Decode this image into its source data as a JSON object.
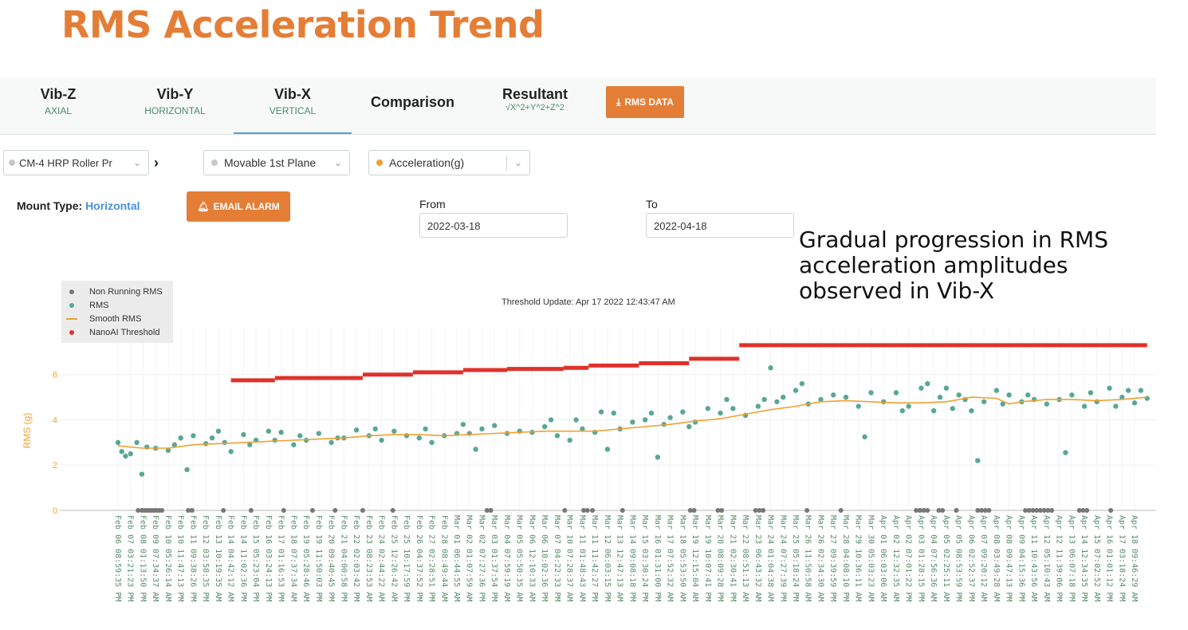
{
  "page_title": "RMS Acceleration Trend",
  "tabs": [
    {
      "label": "Vib-Z",
      "sub": "AXIAL"
    },
    {
      "label": "Vib-Y",
      "sub": "HORIZONTAL"
    },
    {
      "label": "Vib-X",
      "sub": "VERTICAL",
      "active": true
    },
    {
      "label": "Comparison",
      "sub": ""
    },
    {
      "label": "Resultant",
      "sub": "√X^2+Y^2+Z^2"
    }
  ],
  "rms_data_button": "RMS DATA",
  "filters": {
    "machine": "CM-4 HRP Roller Pr",
    "plane": "Movable 1st Plane",
    "measure": "Acceleration(g)"
  },
  "mount": {
    "label": "Mount Type:",
    "value": "Horizontal"
  },
  "email_alarm_button": "EMAIL ALARM",
  "date_range": {
    "from_label": "From",
    "from_value": "2022-03-18",
    "to_label": "To",
    "to_value": "2022-04-18"
  },
  "annotation": "Gradual progression in RMS acceleration amplitudes observed in Vib-X",
  "colors": {
    "accent": "#e47e36",
    "rms": "#5aa696",
    "non_running": "#777777",
    "smooth": "#f0a030",
    "threshold": "#e0312c",
    "link": "#4a90d9"
  },
  "chart_data": {
    "type": "scatter",
    "threshold_note": "Threshold Update: Apr 17 2022 12:43:47 AM",
    "ylabel": "RMS (g)",
    "ylim": [
      0,
      7.4
    ],
    "yticks": [
      0,
      2,
      4,
      6
    ],
    "legend": [
      "Non Running RMS",
      "RMS",
      "Smooth RMS",
      "NanoAI Threshold"
    ],
    "legend_position": "top-left",
    "x_tick_labels": [
      "Feb 06 08:59:35 PM",
      "Feb 07 03:21:23 PM",
      "Feb 08 01:13:50 PM",
      "Feb 09 07:34:37 AM",
      "Feb 10 05:26:14 AM",
      "Feb 10 11:47:13 PM",
      "Feb 11 09:38:26 PM",
      "Feb 12 03:58:35 PM",
      "Feb 13 10:19:35 AM",
      "Feb 14 04:42:12 AM",
      "Feb 14 11:02:36 PM",
      "Feb 15 05:23:04 PM",
      "Feb 16 03:24:13 PM",
      "Feb 17 01:16:53 PM",
      "Feb 18 07:37:34 AM",
      "Feb 19 05:28:46 AM",
      "Feb 19 11:50:03 PM",
      "Feb 20 09:40:45 PM",
      "Feb 21 04:00:58 PM",
      "Feb 22 02:03:42 PM",
      "Feb 23 08:23:53 AM",
      "Feb 24 02:44:22 AM",
      "Feb 25 12:26:42 AM",
      "Feb 25 10:17:59 PM",
      "Feb 26 04:37:52 PM",
      "Feb 27 02:28:51 PM",
      "Feb 28 08:49:44 AM",
      "Mar 01 06:44:55 AM",
      "Mar 02 01:07:59 AM",
      "Mar 02 07:27:36 PM",
      "Mar 03 01:37:54 PM",
      "Mar 04 07:59:19 AM",
      "Mar 05 05:50:35 AM",
      "Mar 06 12:10:33 AM",
      "Mar 06 10:02:36 PM",
      "Mar 07 04:22:33 PM",
      "Mar 10 07:28:37 AM",
      "Mar 11 01:48:43 AM",
      "Mar 11 11:42:27 PM",
      "Mar 12 06:03:15 PM",
      "Mar 13 12:47:13 AM",
      "Mar 14 09:08:18 PM",
      "Mar 15 03:30:24 PM",
      "Mar 16 01:31:00 PM",
      "Mar 17 07:52:32 AM",
      "Mar 18 05:53:50 AM",
      "Mar 19 12:15:04 AM",
      "Mar 19 10:07:41 PM",
      "Mar 20 08:09:28 PM",
      "Mar 21 02:30:41 PM",
      "Mar 22 08:51:13 AM",
      "Mar 23 06:43:32 AM",
      "Mar 24 01:04:38 AM",
      "Mar 24 07:27:39 PM",
      "Mar 25 05:18:24 PM",
      "Mar 26 11:50:58 AM",
      "Mar 26 02:34:30 AM",
      "Mar 27 09:39:59 PM",
      "Mar 28 04:08:10 PM",
      "Mar 29 10:36:11 AM",
      "Mar 30 05:03:23 AM",
      "Apr 01 06:03:06 AM",
      "Apr 02 12:32:35 AM",
      "Apr 02 07:01:22 PM",
      "Apr 03 01:28:15 PM",
      "Apr 04 07:56:36 AM",
      "Apr 05 02:25:11 AM",
      "Apr 05 08:53:59 PM",
      "Apr 06 02:52:37 PM",
      "Apr 07 09:20:12 AM",
      "Apr 08 03:49:28 AM",
      "Apr 08 09:47:13 PM",
      "Apr 09 04:15:36 PM",
      "Apr 11 10:43:56 AM",
      "Apr 12 05:10:43 AM",
      "Apr 12 11:39:06 PM",
      "Apr 13 06:07:18 PM",
      "Apr 14 12:34:35 PM",
      "Apr 15 07:02:52 AM",
      "Apr 16 01:01:12 PM",
      "Apr 17 03:18:24 PM",
      "Apr 18 09:46:29 AM"
    ],
    "threshold_steps": [
      {
        "from": 9,
        "to": 12.5,
        "value": 5.75
      },
      {
        "from": 12.5,
        "to": 19.5,
        "value": 5.85
      },
      {
        "from": 19.5,
        "to": 23.5,
        "value": 6.0
      },
      {
        "from": 23.5,
        "to": 27.5,
        "value": 6.1
      },
      {
        "from": 27.5,
        "to": 31,
        "value": 6.2
      },
      {
        "from": 31,
        "to": 35.5,
        "value": 6.25
      },
      {
        "from": 35.5,
        "to": 37.5,
        "value": 6.3
      },
      {
        "from": 37.5,
        "to": 41.5,
        "value": 6.4
      },
      {
        "from": 41.5,
        "to": 45.5,
        "value": 6.5
      },
      {
        "from": 45.5,
        "to": 49.5,
        "value": 6.7
      },
      {
        "from": 49.5,
        "to": 82,
        "value": 7.3
      }
    ],
    "smooth_rms": [
      [
        0,
        2.85
      ],
      [
        2,
        2.75
      ],
      [
        4,
        2.75
      ],
      [
        6,
        2.9
      ],
      [
        8,
        2.95
      ],
      [
        10,
        3.0
      ],
      [
        12,
        3.05
      ],
      [
        14,
        3.1
      ],
      [
        16,
        3.15
      ],
      [
        18,
        3.2
      ],
      [
        20,
        3.3
      ],
      [
        22,
        3.35
      ],
      [
        24,
        3.35
      ],
      [
        26,
        3.3
      ],
      [
        28,
        3.35
      ],
      [
        30,
        3.4
      ],
      [
        32,
        3.45
      ],
      [
        34,
        3.5
      ],
      [
        36,
        3.5
      ],
      [
        38,
        3.5
      ],
      [
        40,
        3.6
      ],
      [
        42,
        3.7
      ],
      [
        44,
        3.8
      ],
      [
        46,
        3.95
      ],
      [
        48,
        4.05
      ],
      [
        50,
        4.25
      ],
      [
        52,
        4.45
      ],
      [
        54,
        4.6
      ],
      [
        56,
        4.8
      ],
      [
        58,
        4.85
      ],
      [
        60,
        4.8
      ],
      [
        62,
        4.75
      ],
      [
        64,
        4.75
      ],
      [
        66,
        4.8
      ],
      [
        68,
        5.0
      ],
      [
        70,
        4.95
      ],
      [
        71,
        4.7
      ],
      [
        72,
        4.8
      ],
      [
        74,
        4.9
      ],
      [
        76,
        4.9
      ],
      [
        78,
        4.85
      ],
      [
        80,
        4.9
      ],
      [
        82,
        5.0
      ]
    ],
    "rms_points": [
      [
        0,
        3.0
      ],
      [
        0.3,
        2.6
      ],
      [
        0.6,
        2.4
      ],
      [
        1,
        2.5
      ],
      [
        1.5,
        3.0
      ],
      [
        1.9,
        1.6
      ],
      [
        2.3,
        2.8
      ],
      [
        3,
        2.75
      ],
      [
        4,
        2.65
      ],
      [
        4.5,
        2.9
      ],
      [
        5,
        3.2
      ],
      [
        5.5,
        1.8
      ],
      [
        6,
        3.3
      ],
      [
        7,
        2.95
      ],
      [
        7.5,
        3.2
      ],
      [
        8,
        3.5
      ],
      [
        8.5,
        3.0
      ],
      [
        9,
        2.6
      ],
      [
        10,
        3.35
      ],
      [
        10.5,
        2.9
      ],
      [
        11,
        3.1
      ],
      [
        12,
        3.5
      ],
      [
        12.5,
        3.1
      ],
      [
        13,
        3.45
      ],
      [
        14,
        2.9
      ],
      [
        14.5,
        3.3
      ],
      [
        15,
        3.1
      ],
      [
        16,
        3.4
      ],
      [
        17,
        3.0
      ],
      [
        17.5,
        3.2
      ],
      [
        18,
        3.2
      ],
      [
        19,
        3.55
      ],
      [
        20,
        3.3
      ],
      [
        20.5,
        3.6
      ],
      [
        21,
        3.1
      ],
      [
        22,
        3.5
      ],
      [
        23,
        3.3
      ],
      [
        24,
        3.2
      ],
      [
        24.5,
        3.6
      ],
      [
        25,
        3.0
      ],
      [
        26,
        3.3
      ],
      [
        27,
        3.4
      ],
      [
        27.5,
        3.8
      ],
      [
        28,
        3.4
      ],
      [
        28.5,
        2.7
      ],
      [
        29,
        3.6
      ],
      [
        30,
        3.75
      ],
      [
        31,
        3.4
      ],
      [
        32,
        3.5
      ],
      [
        33,
        3.45
      ],
      [
        34,
        3.7
      ],
      [
        34.5,
        4.0
      ],
      [
        35,
        3.3
      ],
      [
        36,
        3.1
      ],
      [
        36.5,
        4.0
      ],
      [
        37,
        3.6
      ],
      [
        38,
        3.45
      ],
      [
        38.5,
        4.35
      ],
      [
        39,
        2.7
      ],
      [
        39.5,
        4.3
      ],
      [
        40,
        3.6
      ],
      [
        41,
        3.9
      ],
      [
        42,
        4.0
      ],
      [
        42.5,
        4.3
      ],
      [
        43,
        2.35
      ],
      [
        43.5,
        3.8
      ],
      [
        44,
        4.1
      ],
      [
        45,
        4.35
      ],
      [
        45.5,
        3.7
      ],
      [
        46,
        3.9
      ],
      [
        47,
        4.5
      ],
      [
        48,
        4.3
      ],
      [
        48.5,
        4.9
      ],
      [
        49,
        4.5
      ],
      [
        50,
        4.2
      ],
      [
        51,
        4.6
      ],
      [
        51.5,
        4.9
      ],
      [
        52,
        6.3
      ],
      [
        52.5,
        4.8
      ],
      [
        53,
        5.0
      ],
      [
        54,
        5.3
      ],
      [
        54.5,
        5.6
      ],
      [
        55,
        4.7
      ],
      [
        56,
        4.9
      ],
      [
        57,
        5.1
      ],
      [
        58,
        5.0
      ],
      [
        59,
        4.6
      ],
      [
        59.5,
        3.25
      ],
      [
        60,
        5.2
      ],
      [
        61,
        4.8
      ],
      [
        62,
        5.2
      ],
      [
        62.5,
        4.4
      ],
      [
        63,
        4.6
      ],
      [
        64,
        5.4
      ],
      [
        64.5,
        5.6
      ],
      [
        65,
        4.4
      ],
      [
        65.5,
        5.0
      ],
      [
        66,
        5.4
      ],
      [
        66.5,
        4.5
      ],
      [
        67,
        5.1
      ],
      [
        67.5,
        4.9
      ],
      [
        68,
        4.4
      ],
      [
        68.5,
        2.2
      ],
      [
        69,
        4.8
      ],
      [
        70,
        5.3
      ],
      [
        70.5,
        4.7
      ],
      [
        71,
        5.1
      ],
      [
        72,
        4.8
      ],
      [
        72.5,
        5.1
      ],
      [
        73,
        4.9
      ],
      [
        74,
        4.7
      ],
      [
        75,
        4.9
      ],
      [
        75.5,
        2.55
      ],
      [
        76,
        5.1
      ],
      [
        77,
        4.6
      ],
      [
        77.5,
        5.2
      ],
      [
        78,
        4.8
      ],
      [
        79,
        5.4
      ],
      [
        79.5,
        4.6
      ],
      [
        80,
        5.0
      ],
      [
        80.5,
        5.3
      ],
      [
        81,
        4.75
      ],
      [
        81.5,
        5.3
      ],
      [
        82,
        4.95
      ]
    ],
    "non_running_points": [
      [
        1.6,
        0
      ],
      [
        1.9,
        0
      ],
      [
        2.1,
        0
      ],
      [
        2.3,
        0
      ],
      [
        2.5,
        0
      ],
      [
        2.7,
        0
      ],
      [
        2.9,
        0
      ],
      [
        3.1,
        0
      ],
      [
        3.3,
        0
      ],
      [
        3.5,
        0
      ],
      [
        5.6,
        0
      ],
      [
        5.9,
        0
      ],
      [
        8.4,
        0
      ],
      [
        10.6,
        0
      ],
      [
        13.2,
        0
      ],
      [
        15.5,
        0
      ],
      [
        17.3,
        0
      ],
      [
        19.5,
        0
      ],
      [
        21.9,
        0
      ],
      [
        29.4,
        0
      ],
      [
        29.7,
        0
      ],
      [
        35.6,
        0
      ],
      [
        37.1,
        0
      ],
      [
        37.4,
        0
      ],
      [
        37.8,
        0
      ],
      [
        40.2,
        0
      ],
      [
        45.6,
        0
      ],
      [
        45.9,
        0
      ],
      [
        47.8,
        0
      ],
      [
        48.1,
        0
      ],
      [
        50.8,
        0
      ],
      [
        51.1,
        0
      ],
      [
        51.4,
        0
      ],
      [
        54.9,
        0
      ],
      [
        57.6,
        0
      ],
      [
        63.6,
        0
      ],
      [
        63.9,
        0
      ],
      [
        64.2,
        0
      ],
      [
        64.5,
        0
      ],
      [
        65.4,
        0
      ],
      [
        65.7,
        0
      ],
      [
        66.8,
        0
      ],
      [
        68.5,
        0
      ],
      [
        68.8,
        0
      ],
      [
        69.1,
        0
      ],
      [
        69.4,
        0
      ],
      [
        72.3,
        0
      ],
      [
        72.6,
        0
      ],
      [
        72.9,
        0
      ],
      [
        73.2,
        0
      ],
      [
        73.5,
        0
      ],
      [
        73.8,
        0
      ],
      [
        74.1,
        0
      ],
      [
        74.4,
        0
      ],
      [
        76.6,
        0
      ],
      [
        76.9,
        0
      ],
      [
        77.2,
        0
      ],
      [
        79.1,
        0
      ]
    ]
  }
}
